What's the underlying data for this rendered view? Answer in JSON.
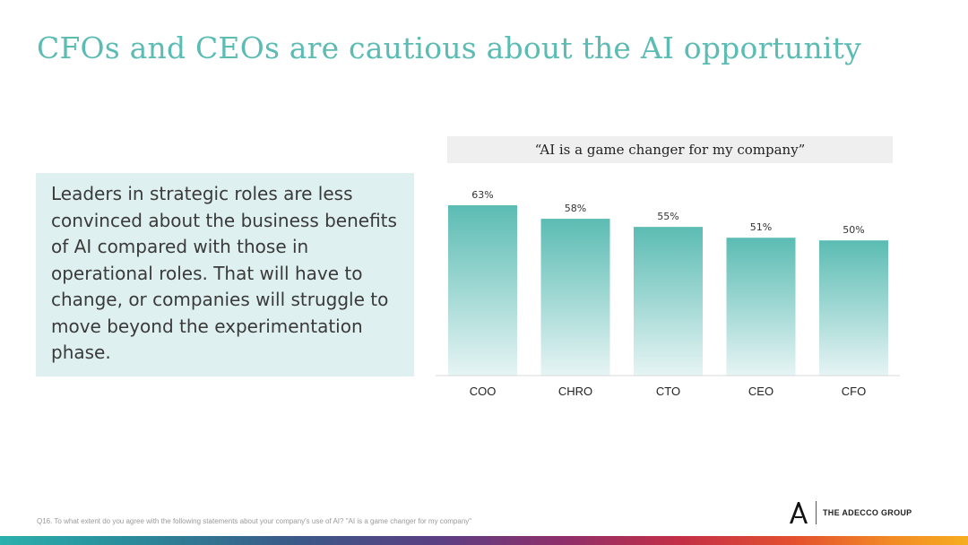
{
  "page": {
    "title": "CFOs and CEOs are cautious about the AI opportunity",
    "callout_text": "Leaders in strategic roles are less convinced about the business benefits of AI compared with those in operational roles. That will have to change, or companies will struggle to move beyond the experimentation phase.",
    "footnote": "Q16. To what extent do you agree with the following statements about your company's use of AI? \"AI is a game changer for my company\"",
    "logo_text": "THE ADECCO GROUP"
  },
  "colors": {
    "title": "#5bbcb3",
    "bar_top": "#5bbcb3",
    "bar_bottom": "#e6f4f4",
    "callout_bg": "#dff0f1"
  },
  "chart_data": {
    "type": "bar",
    "title": "“AI is a game changer for my company”",
    "categories": [
      "COO",
      "CHRO",
      "CTO",
      "CEO",
      "CFO"
    ],
    "values": [
      63,
      58,
      55,
      51,
      50
    ],
    "value_labels": [
      "63%",
      "58%",
      "55%",
      "51%",
      "50%"
    ],
    "ylim": [
      0,
      63
    ],
    "grid": false,
    "legend": "none"
  }
}
